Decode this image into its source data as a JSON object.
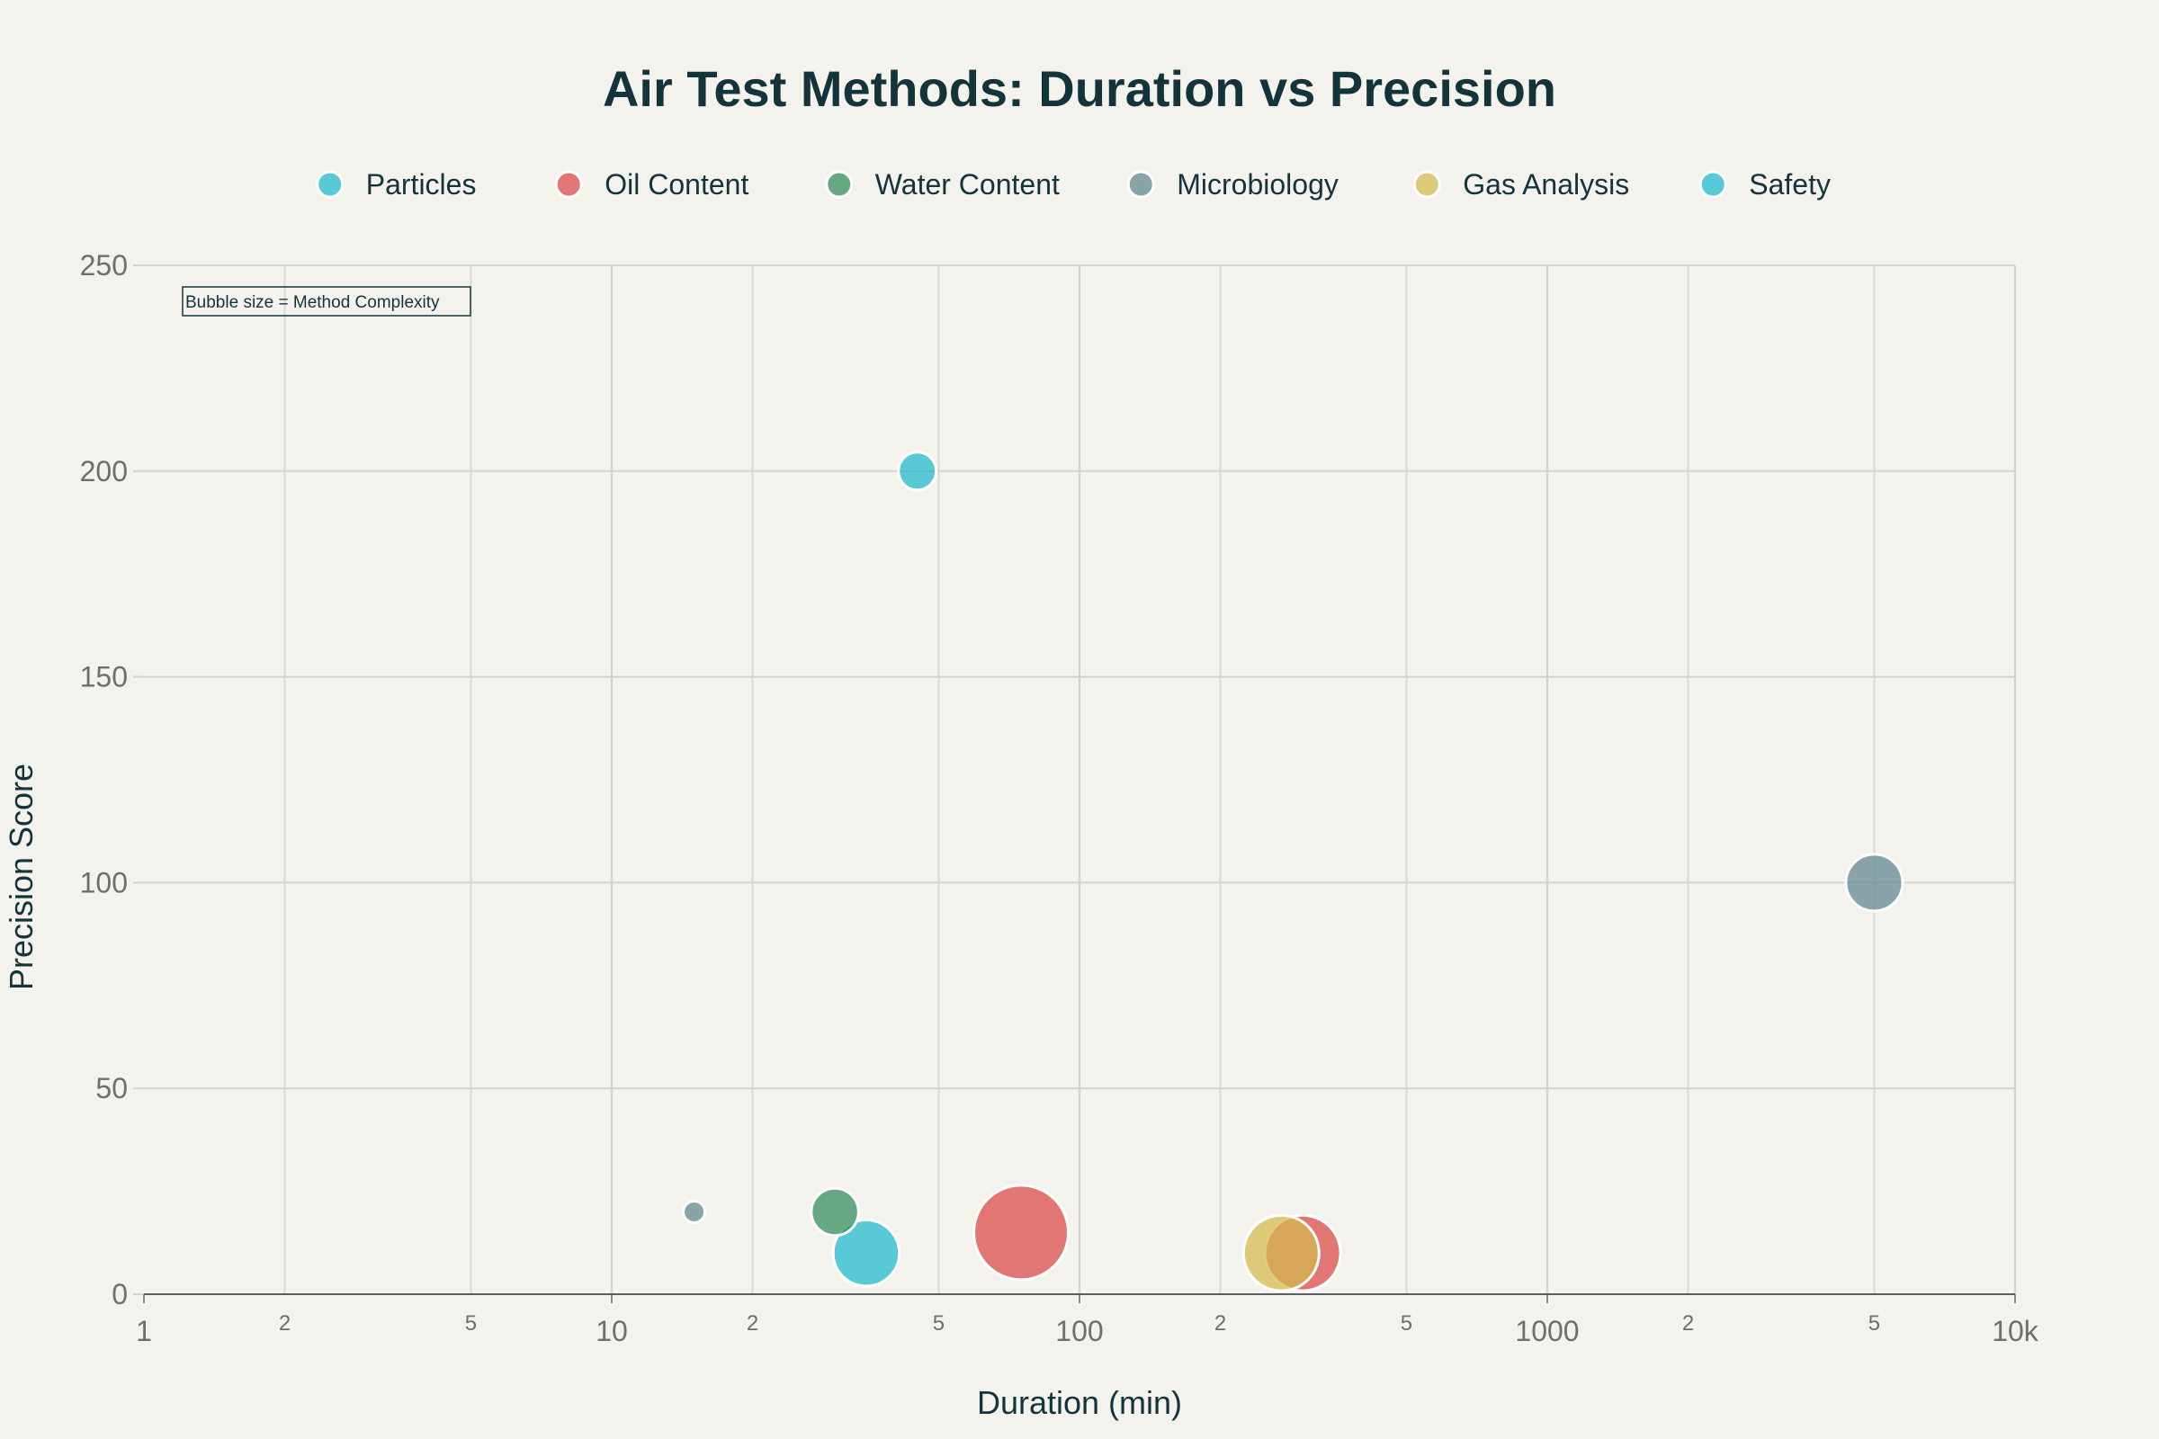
{
  "chart_data": {
    "type": "scatter",
    "title": "Air Test Methods: Duration vs Precision",
    "xlabel": "Duration (min)",
    "ylabel": "Precision Score",
    "x_scale": "log",
    "xlim": [
      1,
      10000
    ],
    "ylim": [
      0,
      250
    ],
    "x_major_ticks": [
      {
        "value": 1,
        "label": "1"
      },
      {
        "value": 10,
        "label": "10"
      },
      {
        "value": 100,
        "label": "100"
      },
      {
        "value": 1000,
        "label": "1000"
      },
      {
        "value": 10000,
        "label": "10k"
      }
    ],
    "x_minor_ticks": [
      {
        "value": 2,
        "label": "2"
      },
      {
        "value": 5,
        "label": "5"
      },
      {
        "value": 20,
        "label": "2"
      },
      {
        "value": 50,
        "label": "5"
      },
      {
        "value": 200,
        "label": "2"
      },
      {
        "value": 500,
        "label": "5"
      },
      {
        "value": 2000,
        "label": "2"
      },
      {
        "value": 5000,
        "label": "5"
      }
    ],
    "y_ticks": [
      {
        "value": 0,
        "label": "0"
      },
      {
        "value": 50,
        "label": "50"
      },
      {
        "value": 100,
        "label": "100"
      },
      {
        "value": 150,
        "label": "150"
      },
      {
        "value": 200,
        "label": "200"
      },
      {
        "value": 250,
        "label": "250"
      }
    ],
    "grid": true,
    "legend_position": "top",
    "annotation": "Bubble size = Method Complexity",
    "series": [
      {
        "name": "Particles",
        "color": "#1fb8cd",
        "points": [
          {
            "x": 45,
            "y": 200,
            "size": 2
          }
        ]
      },
      {
        "name": "Oil Content",
        "color": "#db4545",
        "points": [
          {
            "x": 75,
            "y": 15,
            "size": 5
          },
          {
            "x": 300,
            "y": 10,
            "size": 4
          }
        ]
      },
      {
        "name": "Water Content",
        "color": "#2e8b57",
        "points": [
          {
            "x": 30,
            "y": 20,
            "size": 2.5
          }
        ]
      },
      {
        "name": "Microbiology",
        "color": "#5d878f",
        "points": [
          {
            "x": 15,
            "y": 20,
            "size": 1
          },
          {
            "x": 5000,
            "y": 100,
            "size": 3
          }
        ]
      },
      {
        "name": "Gas Analysis",
        "color": "#d2ba4c",
        "points": [
          {
            "x": 270,
            "y": 10,
            "size": 4
          }
        ]
      },
      {
        "name": "Safety",
        "color": "#1fb8cd",
        "points": [
          {
            "x": 35,
            "y": 10,
            "size": 3.5
          }
        ]
      }
    ]
  }
}
